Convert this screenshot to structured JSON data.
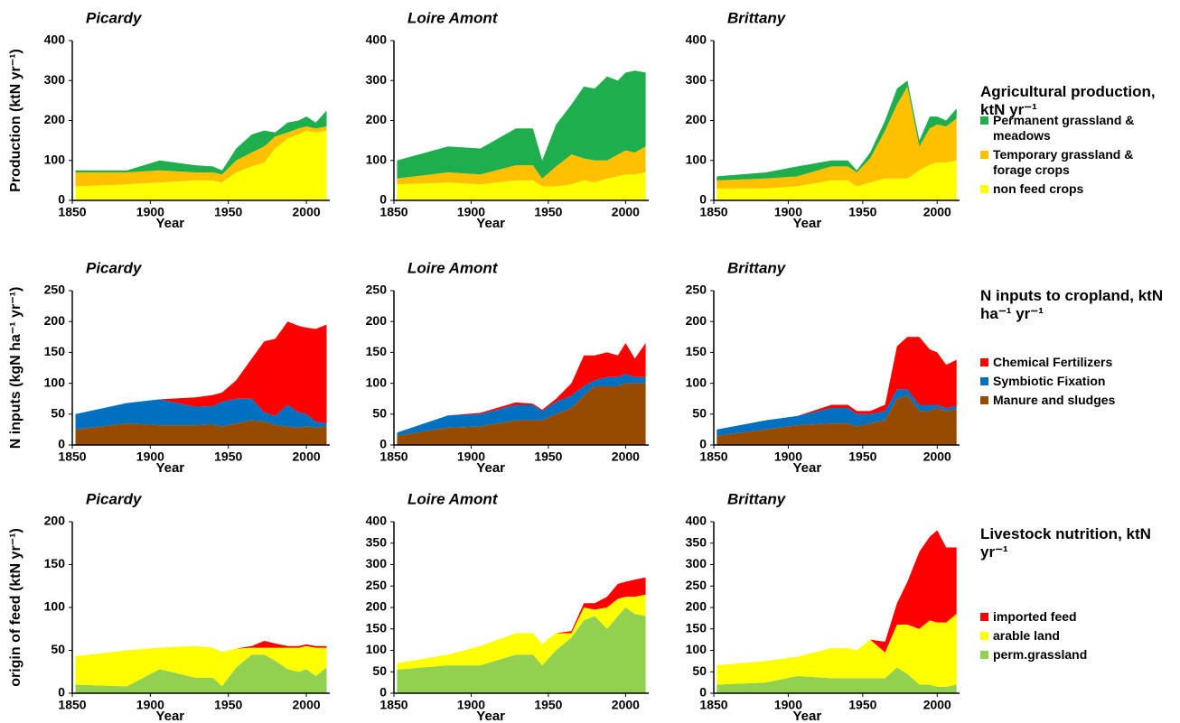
{
  "chart_data": [
    {
      "type": "area",
      "title": "Picardy",
      "ylabel": "Production (ktN yr⁻¹)",
      "xlabel": "Year",
      "x": [
        1852,
        1885,
        1906,
        1929,
        1940,
        1946,
        1955,
        1965,
        1973,
        1980,
        1988,
        1995,
        2000,
        2006,
        2013
      ],
      "xlim": [
        1850,
        2015
      ],
      "xticks": [
        1850,
        1900,
        1950,
        2000
      ],
      "ylim": [
        0,
        400
      ],
      "yticks": [
        0,
        100,
        200,
        300,
        400
      ],
      "series": [
        {
          "color": "#ffff00",
          "values": [
            35,
            40,
            45,
            50,
            50,
            45,
            70,
            85,
            95,
            130,
            155,
            165,
            175,
            170,
            175
          ]
        },
        {
          "color": "#ffc000",
          "values": [
            35,
            30,
            30,
            20,
            20,
            20,
            30,
            35,
            40,
            30,
            15,
            15,
            10,
            10,
            10
          ]
        },
        {
          "color": "#1fae4e",
          "values": [
            5,
            5,
            25,
            18,
            15,
            10,
            30,
            45,
            40,
            10,
            25,
            20,
            25,
            15,
            40
          ]
        }
      ]
    },
    {
      "type": "area",
      "title": "Loire Amont",
      "xlabel": "Year",
      "x": [
        1852,
        1885,
        1906,
        1929,
        1940,
        1946,
        1955,
        1965,
        1973,
        1980,
        1988,
        1995,
        2000,
        2006,
        2013
      ],
      "xlim": [
        1850,
        2015
      ],
      "xticks": [
        1850,
        1900,
        1950,
        2000
      ],
      "ylim": [
        0,
        400
      ],
      "yticks": [
        0,
        100,
        200,
        300,
        400
      ],
      "series": [
        {
          "color": "#ffff00",
          "values": [
            40,
            45,
            40,
            50,
            50,
            35,
            35,
            40,
            50,
            45,
            55,
            60,
            65,
            65,
            70
          ]
        },
        {
          "color": "#ffc000",
          "values": [
            15,
            25,
            25,
            38,
            38,
            20,
            50,
            75,
            55,
            55,
            45,
            55,
            60,
            55,
            65
          ]
        },
        {
          "color": "#1fae4e",
          "values": [
            45,
            65,
            65,
            92,
            92,
            45,
            105,
            125,
            180,
            180,
            210,
            185,
            195,
            205,
            185
          ]
        }
      ]
    },
    {
      "type": "area",
      "title": "Brittany",
      "xlabel": "Year",
      "x": [
        1852,
        1885,
        1906,
        1929,
        1940,
        1946,
        1955,
        1965,
        1973,
        1980,
        1988,
        1995,
        2000,
        2006,
        2013
      ],
      "xlim": [
        1850,
        2015
      ],
      "xticks": [
        1850,
        1900,
        1950,
        2000
      ],
      "ylim": [
        0,
        400
      ],
      "yticks": [
        0,
        100,
        200,
        300,
        400
      ],
      "legend_title": "Agricultural production, ktN yr⁻¹",
      "series": [
        {
          "name": "non feed crops",
          "color": "#ffff00",
          "values": [
            30,
            30,
            35,
            50,
            50,
            35,
            45,
            55,
            55,
            55,
            75,
            90,
            95,
            95,
            100
          ]
        },
        {
          "name": "Temporary grassland & forage crops",
          "color": "#ffc000",
          "values": [
            20,
            25,
            25,
            35,
            35,
            35,
            60,
            120,
            185,
            230,
            60,
            90,
            95,
            90,
            105
          ]
        },
        {
          "name": "Permanent grassland & meadows",
          "color": "#1fae4e",
          "values": [
            10,
            15,
            25,
            15,
            15,
            5,
            15,
            25,
            40,
            15,
            15,
            30,
            20,
            15,
            25
          ]
        }
      ]
    },
    {
      "type": "area",
      "title": "Picardy",
      "ylabel": "N inputs (kgN ha⁻¹ yr⁻¹)",
      "xlabel": "Year",
      "x": [
        1852,
        1885,
        1906,
        1929,
        1940,
        1946,
        1955,
        1965,
        1973,
        1980,
        1988,
        1995,
        2000,
        2006,
        2013
      ],
      "xlim": [
        1850,
        2015
      ],
      "xticks": [
        1850,
        1900,
        1950,
        2000
      ],
      "ylim": [
        0,
        250
      ],
      "yticks": [
        0,
        50,
        100,
        150,
        200,
        250
      ],
      "series": [
        {
          "color": "#964b00",
          "values": [
            25,
            35,
            32,
            32,
            33,
            30,
            35,
            40,
            38,
            32,
            30,
            28,
            30,
            28,
            30
          ]
        },
        {
          "color": "#0070c0",
          "values": [
            25,
            33,
            42,
            30,
            30,
            40,
            40,
            35,
            15,
            15,
            35,
            25,
            20,
            10,
            5
          ]
        },
        {
          "color": "#ff0000",
          "values": [
            0,
            0,
            0,
            15,
            18,
            15,
            30,
            65,
            115,
            125,
            135,
            140,
            140,
            150,
            160
          ]
        }
      ]
    },
    {
      "type": "area",
      "title": "Loire Amont",
      "xlabel": "Year",
      "x": [
        1852,
        1885,
        1906,
        1929,
        1940,
        1946,
        1955,
        1965,
        1973,
        1980,
        1988,
        1995,
        2000,
        2006,
        2013
      ],
      "xlim": [
        1850,
        2015
      ],
      "xticks": [
        1850,
        1900,
        1950,
        2000
      ],
      "ylim": [
        0,
        250
      ],
      "yticks": [
        0,
        50,
        100,
        150,
        200,
        250
      ],
      "series": [
        {
          "color": "#964b00",
          "values": [
            15,
            28,
            30,
            40,
            40,
            40,
            50,
            60,
            80,
            95,
            95,
            95,
            100,
            100,
            100
          ]
        },
        {
          "color": "#0070c0",
          "values": [
            5,
            20,
            20,
            25,
            25,
            15,
            20,
            20,
            15,
            10,
            15,
            15,
            15,
            10,
            10
          ]
        },
        {
          "color": "#ff0000",
          "values": [
            0,
            0,
            2,
            4,
            2,
            2,
            5,
            20,
            50,
            40,
            40,
            35,
            50,
            30,
            55
          ]
        }
      ]
    },
    {
      "type": "area",
      "title": "Brittany",
      "xlabel": "Year",
      "x": [
        1852,
        1885,
        1906,
        1929,
        1940,
        1946,
        1955,
        1965,
        1973,
        1980,
        1988,
        1995,
        2000,
        2006,
        2013
      ],
      "xlim": [
        1850,
        2015
      ],
      "xticks": [
        1850,
        1900,
        1950,
        2000
      ],
      "ylim": [
        0,
        250
      ],
      "yticks": [
        0,
        50,
        100,
        150,
        200,
        250
      ],
      "legend_title": "N inputs to cropland, ktN ha⁻¹ yr⁻¹",
      "series": [
        {
          "name": "Manure and sludges",
          "color": "#964b00",
          "values": [
            15,
            25,
            32,
            35,
            35,
            30,
            35,
            40,
            75,
            80,
            55,
            55,
            60,
            55,
            58
          ]
        },
        {
          "name": "Symbiotic Fixation",
          "color": "#0070c0",
          "values": [
            10,
            15,
            15,
            25,
            25,
            20,
            15,
            15,
            15,
            10,
            10,
            10,
            5,
            5,
            5
          ]
        },
        {
          "name": "Chemical Fertilizers",
          "color": "#ff0000",
          "values": [
            0,
            0,
            0,
            5,
            5,
            5,
            5,
            10,
            70,
            85,
            110,
            90,
            85,
            70,
            75
          ]
        }
      ]
    },
    {
      "type": "area",
      "title": "Picardy",
      "ylabel": "origin of feed (ktN yr⁻¹)",
      "xlabel": "Year",
      "x": [
        1852,
        1885,
        1906,
        1929,
        1940,
        1946,
        1955,
        1965,
        1973,
        1980,
        1988,
        1995,
        2000,
        2006,
        2013
      ],
      "xlim": [
        1850,
        2015
      ],
      "xticks": [
        1850,
        1900,
        1950,
        2000
      ],
      "ylim": [
        0,
        200
      ],
      "yticks": [
        0,
        50,
        100,
        150,
        200
      ],
      "series": [
        {
          "color": "#92d050",
          "values": [
            10,
            8,
            28,
            18,
            18,
            8,
            30,
            45,
            45,
            38,
            28,
            25,
            28,
            20,
            30
          ]
        },
        {
          "color": "#ffff00",
          "values": [
            33,
            42,
            25,
            37,
            35,
            40,
            22,
            8,
            8,
            15,
            25,
            28,
            27,
            33,
            23
          ]
        },
        {
          "color": "#ff0000",
          "values": [
            0,
            0,
            0,
            0,
            0,
            0,
            0,
            2,
            8,
            5,
            2,
            2,
            2,
            2,
            2
          ]
        }
      ]
    },
    {
      "type": "area",
      "title": "Loire Amont",
      "xlabel": "Year",
      "x": [
        1852,
        1885,
        1906,
        1929,
        1940,
        1946,
        1955,
        1965,
        1973,
        1980,
        1988,
        1995,
        2000,
        2006,
        2013
      ],
      "xlim": [
        1850,
        2015
      ],
      "xticks": [
        1850,
        1900,
        1950,
        2000
      ],
      "ylim": [
        0,
        400
      ],
      "yticks": [
        0,
        50,
        100,
        150,
        200,
        250,
        300,
        350,
        400
      ],
      "series": [
        {
          "color": "#92d050",
          "values": [
            55,
            65,
            65,
            90,
            90,
            65,
            100,
            130,
            170,
            180,
            150,
            180,
            200,
            185,
            180
          ]
        },
        {
          "color": "#ffff00",
          "values": [
            15,
            25,
            45,
            50,
            50,
            50,
            40,
            10,
            30,
            15,
            50,
            40,
            25,
            40,
            50
          ]
        },
        {
          "color": "#ff0000",
          "values": [
            0,
            0,
            0,
            0,
            0,
            0,
            0,
            5,
            10,
            15,
            25,
            35,
            35,
            40,
            40
          ]
        }
      ]
    },
    {
      "type": "area",
      "title": "Brittany",
      "xlabel": "Year",
      "x": [
        1852,
        1885,
        1906,
        1929,
        1940,
        1946,
        1955,
        1965,
        1973,
        1980,
        1988,
        1995,
        2000,
        2006,
        2013
      ],
      "xlim": [
        1850,
        2015
      ],
      "xticks": [
        1850,
        1900,
        1950,
        2000
      ],
      "ylim": [
        0,
        400
      ],
      "yticks": [
        0,
        50,
        100,
        150,
        200,
        250,
        300,
        350,
        400
      ],
      "legend_title": "Livestock nutrition, ktN yr⁻¹",
      "series": [
        {
          "name": "perm.grassland",
          "color": "#92d050",
          "values": [
            20,
            25,
            40,
            35,
            35,
            35,
            35,
            35,
            60,
            45,
            20,
            20,
            15,
            15,
            20
          ]
        },
        {
          "name": "arable land",
          "color": "#ffff00",
          "values": [
            45,
            50,
            45,
            70,
            70,
            65,
            90,
            60,
            100,
            115,
            130,
            150,
            150,
            150,
            165
          ]
        },
        {
          "name": "imported feed",
          "color": "#ff0000",
          "values": [
            0,
            0,
            0,
            0,
            0,
            0,
            0,
            25,
            50,
            100,
            180,
            195,
            215,
            175,
            155
          ]
        }
      ]
    }
  ]
}
